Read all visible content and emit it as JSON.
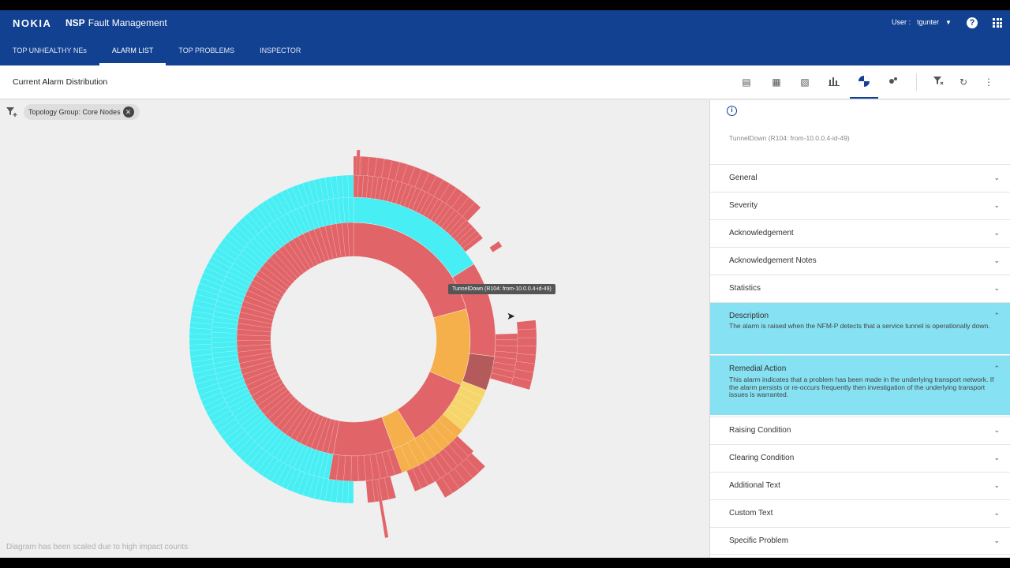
{
  "header": {
    "logo": "NOKIA",
    "product_bold": "NSP",
    "product_name": "Fault Management",
    "user_label": "User :",
    "user_name": "tgunter",
    "help": "?"
  },
  "tabs": [
    {
      "label": "TOP UNHEALTHY NEs"
    },
    {
      "label": "ALARM LIST"
    },
    {
      "label": "TOP PROBLEMS"
    },
    {
      "label": "INSPECTOR"
    }
  ],
  "toolbar": {
    "title": "Current Alarm Distribution",
    "icons": [
      "alarm-list-view-icon",
      "alarm-object-view-icon",
      "alarm-export-view-icon",
      "bar-chart-icon",
      "sunburst-icon",
      "scatter-icon",
      "clear-filter-icon",
      "refresh-icon",
      "more-icon"
    ]
  },
  "filter": {
    "chip_label": "Topology Group: Core Nodes"
  },
  "tooltip": "TunnelDown (R104: from-10.0.0.4-id-49)",
  "footnote": "Diagram has been scaled due to high impact counts",
  "colors": {
    "critical": "#e16568",
    "major": "#f5b04b",
    "minor": "#f6d66a",
    "cleared": "#47eef3",
    "brand": "#124191",
    "highlight": "#86e1f2"
  },
  "panel": {
    "subtitle": "TunnelDown (R104: from-10.0.0.4-id-49)",
    "sections": [
      {
        "label": "General",
        "open": false
      },
      {
        "label": "Severity",
        "open": false
      },
      {
        "label": "Acknowledgement",
        "open": false
      },
      {
        "label": "Acknowledgement Notes",
        "open": false
      },
      {
        "label": "Statistics",
        "open": false
      },
      {
        "label": "Description",
        "open": true,
        "body": "The alarm is raised when the NFM-P detects that a service tunnel is operationally down."
      },
      {
        "label": "Remedial Action",
        "open": true,
        "body": "This alarm indicates that a problem has been made in the underlying transport network.  If the alarm persists or re-occurs frequently then investigation of the underlying transport issues is warranted."
      },
      {
        "label": "Raising Condition",
        "open": false
      },
      {
        "label": "Clearing Condition",
        "open": false
      },
      {
        "label": "Additional Text",
        "open": false
      },
      {
        "label": "Custom Text",
        "open": false
      },
      {
        "label": "Specific Problem",
        "open": false
      }
    ]
  }
}
